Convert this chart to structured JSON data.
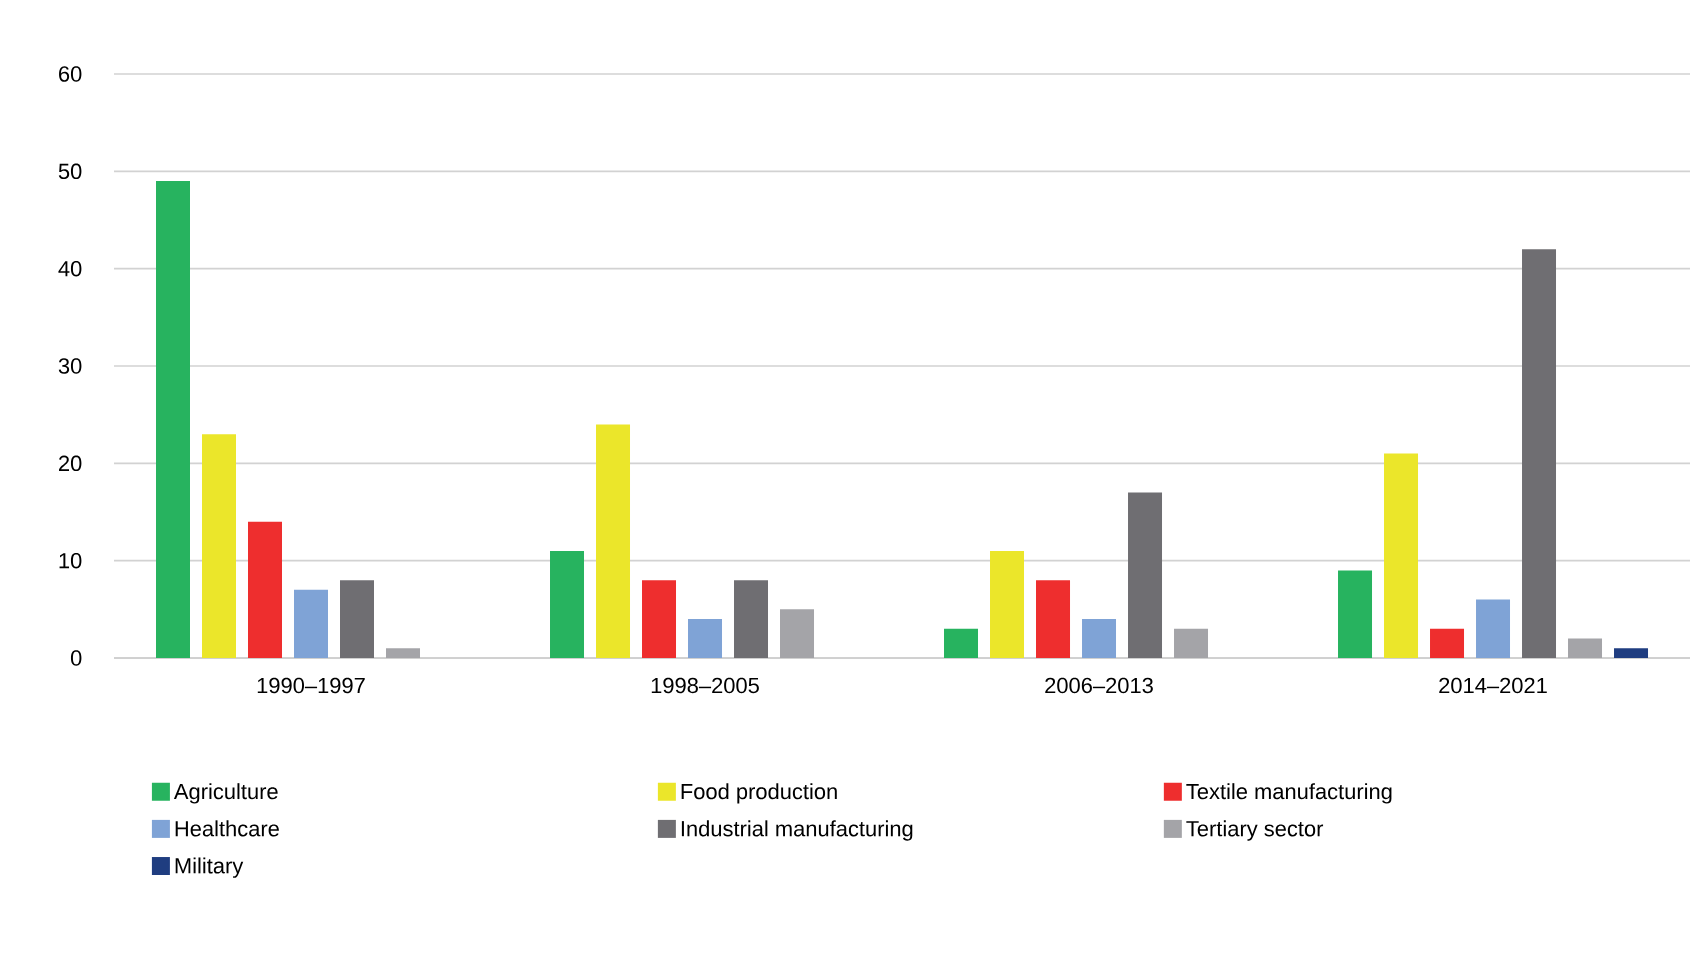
{
  "chart_data": {
    "type": "bar",
    "categories": [
      "1990–1997",
      "1998–2005",
      "2006–2013",
      "2014–2021"
    ],
    "series": [
      {
        "name": "Agriculture",
        "color": "#27b35f",
        "values": [
          49,
          11,
          3,
          9
        ]
      },
      {
        "name": "Food production",
        "color": "#ebe62a",
        "values": [
          23,
          24,
          11,
          21
        ]
      },
      {
        "name": "Textile manufacturing",
        "color": "#ee2e2e",
        "values": [
          14,
          8,
          8,
          3
        ]
      },
      {
        "name": "Healthcare",
        "color": "#7fa3d6",
        "values": [
          7,
          4,
          4,
          6
        ]
      },
      {
        "name": "Industrial manufacturing",
        "color": "#6f6e72",
        "values": [
          8,
          8,
          17,
          42
        ]
      },
      {
        "name": "Tertiary sector",
        "color": "#a4a4a8",
        "values": [
          1,
          5,
          3,
          2
        ]
      },
      {
        "name": "Military",
        "color": "#1f3d80",
        "values": [
          0,
          0,
          0,
          1
        ]
      }
    ],
    "ylim": [
      0,
      60
    ],
    "yticks": [
      0,
      10,
      20,
      30,
      40,
      50,
      60
    ],
    "grid": "y",
    "legend": "bottom"
  }
}
